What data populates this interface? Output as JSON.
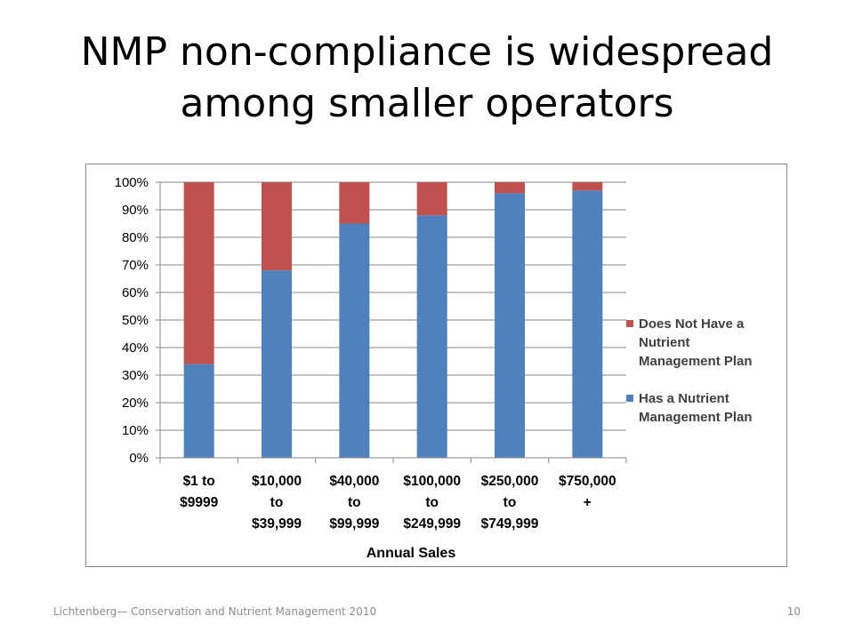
{
  "slide": {
    "title_line1": "NMP non-compliance is widespread",
    "title_line2": "among smaller operators",
    "footer_source": "Lichtenberg— Conservation and Nutrient Management 2010",
    "page_number": "10"
  },
  "chart_data": {
    "type": "bar",
    "stacked": true,
    "xlabel": "Annual Sales",
    "ylabel": "",
    "ylim": [
      0,
      100
    ],
    "yticks": [
      "0%",
      "10%",
      "20%",
      "30%",
      "40%",
      "50%",
      "60%",
      "70%",
      "80%",
      "90%",
      "100%"
    ],
    "grid": true,
    "legend_position": "right",
    "categories": [
      [
        "$1 to",
        "$9999"
      ],
      [
        "$10,000",
        "to",
        "$39,999"
      ],
      [
        "$40,000",
        "to",
        "$99,999"
      ],
      [
        "$100,000",
        "to",
        "$249,999"
      ],
      [
        "$250,000",
        "to",
        "$749,999"
      ],
      [
        "$750,000",
        "+"
      ]
    ],
    "series": [
      {
        "name": "Has a Nutrient Management Plan",
        "legend_lines": [
          "Has a Nutrient",
          "Management Plan"
        ],
        "color": "#4f81bd",
        "values": [
          34,
          68,
          85,
          88,
          96,
          97
        ]
      },
      {
        "name": "Does Not Have a Nutrient Management Plan",
        "legend_lines": [
          "Does Not Have a",
          "Nutrient",
          "Management Plan"
        ],
        "color": "#c0504d",
        "values": [
          66,
          32,
          15,
          12,
          4,
          3
        ]
      }
    ]
  }
}
